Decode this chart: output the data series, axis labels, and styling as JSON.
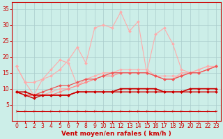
{
  "xlabel": "Vent moyen/en rafales ( km/h )",
  "bg_color": "#cceee8",
  "grid_color": "#aacccc",
  "x": [
    0,
    1,
    2,
    3,
    4,
    5,
    6,
    7,
    8,
    9,
    10,
    11,
    12,
    13,
    14,
    15,
    16,
    17,
    18,
    19,
    20,
    21,
    22,
    23
  ],
  "lines": [
    {
      "y": [
        17,
        12,
        12,
        13,
        14,
        16,
        19,
        23,
        18,
        29,
        30,
        29,
        34,
        28,
        31,
        15,
        27,
        29,
        24,
        16,
        15,
        16,
        17,
        17
      ],
      "color": "#ffaaaa",
      "lw": 0.8,
      "marker": "D",
      "ms": 2.0,
      "zorder": 2
    },
    {
      "y": [
        17,
        12,
        8,
        13,
        16,
        19,
        18,
        11,
        13,
        14,
        15,
        15,
        16,
        16,
        16,
        16,
        14,
        13,
        13,
        15,
        15,
        16,
        17,
        17
      ],
      "color": "#ffaaaa",
      "lw": 0.8,
      "marker": "D",
      "ms": 2.0,
      "zorder": 3
    },
    {
      "y": [
        9,
        8,
        8,
        8,
        9,
        10,
        10,
        11,
        12,
        13,
        14,
        15,
        15,
        15,
        15,
        15,
        14,
        14,
        14,
        14,
        15,
        15,
        16,
        17
      ],
      "color": "#ffaaaa",
      "lw": 0.8,
      "marker": "D",
      "ms": 2.0,
      "zorder": 3
    },
    {
      "y": [
        9,
        8,
        8,
        8,
        8,
        9,
        10,
        11,
        12,
        13,
        14,
        14,
        15,
        15,
        15,
        15,
        14,
        13,
        13,
        14,
        15,
        15,
        16,
        17
      ],
      "color": "#ff8888",
      "lw": 0.8,
      "marker": "D",
      "ms": 2.0,
      "zorder": 3
    },
    {
      "y": [
        9,
        8,
        8,
        9,
        10,
        11,
        11,
        12,
        13,
        13,
        14,
        15,
        15,
        15,
        15,
        15,
        14,
        13,
        13,
        14,
        15,
        15,
        16,
        17
      ],
      "color": "#ee5555",
      "lw": 0.9,
      "marker": "D",
      "ms": 2.0,
      "zorder": 4
    },
    {
      "y": [
        9,
        8,
        7,
        8,
        8,
        8,
        8,
        9,
        9,
        9,
        9,
        9,
        9,
        9,
        9,
        9,
        9,
        9,
        9,
        9,
        9,
        9,
        9,
        9
      ],
      "color": "#cc0000",
      "lw": 1.0,
      "marker": "D",
      "ms": 2.0,
      "zorder": 5
    },
    {
      "y": [
        9,
        9,
        8,
        8,
        8,
        8,
        8,
        9,
        9,
        9,
        9,
        9,
        10,
        10,
        10,
        10,
        10,
        9,
        9,
        9,
        10,
        10,
        10,
        10
      ],
      "color": "#cc0000",
      "lw": 1.2,
      "marker": "D",
      "ms": 2.0,
      "zorder": 5
    },
    {
      "y": [
        9,
        8,
        8,
        8,
        8,
        8,
        8,
        9,
        9,
        9,
        9,
        9,
        9,
        9,
        9,
        9,
        9,
        9,
        9,
        9,
        9,
        9,
        9,
        9
      ],
      "color": "#ff9999",
      "lw": 0.8,
      "marker": "D",
      "ms": 2.0,
      "zorder": 3
    },
    {
      "y": [
        3,
        3,
        3,
        3,
        3,
        3,
        3,
        3,
        3,
        3,
        3,
        3,
        3,
        3,
        3,
        3,
        3,
        3,
        3,
        3,
        3,
        3,
        3,
        3
      ],
      "color": "#cc0000",
      "lw": 0.8,
      "marker": "4",
      "ms": 4,
      "zorder": 6,
      "linestyle": "-"
    }
  ],
  "ylim": [
    0,
    37
  ],
  "xlim": [
    -0.5,
    23.5
  ],
  "yticks": [
    5,
    10,
    15,
    20,
    25,
    30,
    35
  ],
  "xticks": [
    0,
    1,
    2,
    3,
    4,
    5,
    6,
    7,
    8,
    9,
    10,
    11,
    12,
    13,
    14,
    15,
    16,
    17,
    18,
    19,
    20,
    21,
    22,
    23
  ],
  "tick_color": "#cc0000",
  "label_color": "#cc0000",
  "tick_fontsize": 5.5,
  "xlabel_fontsize": 6.5
}
